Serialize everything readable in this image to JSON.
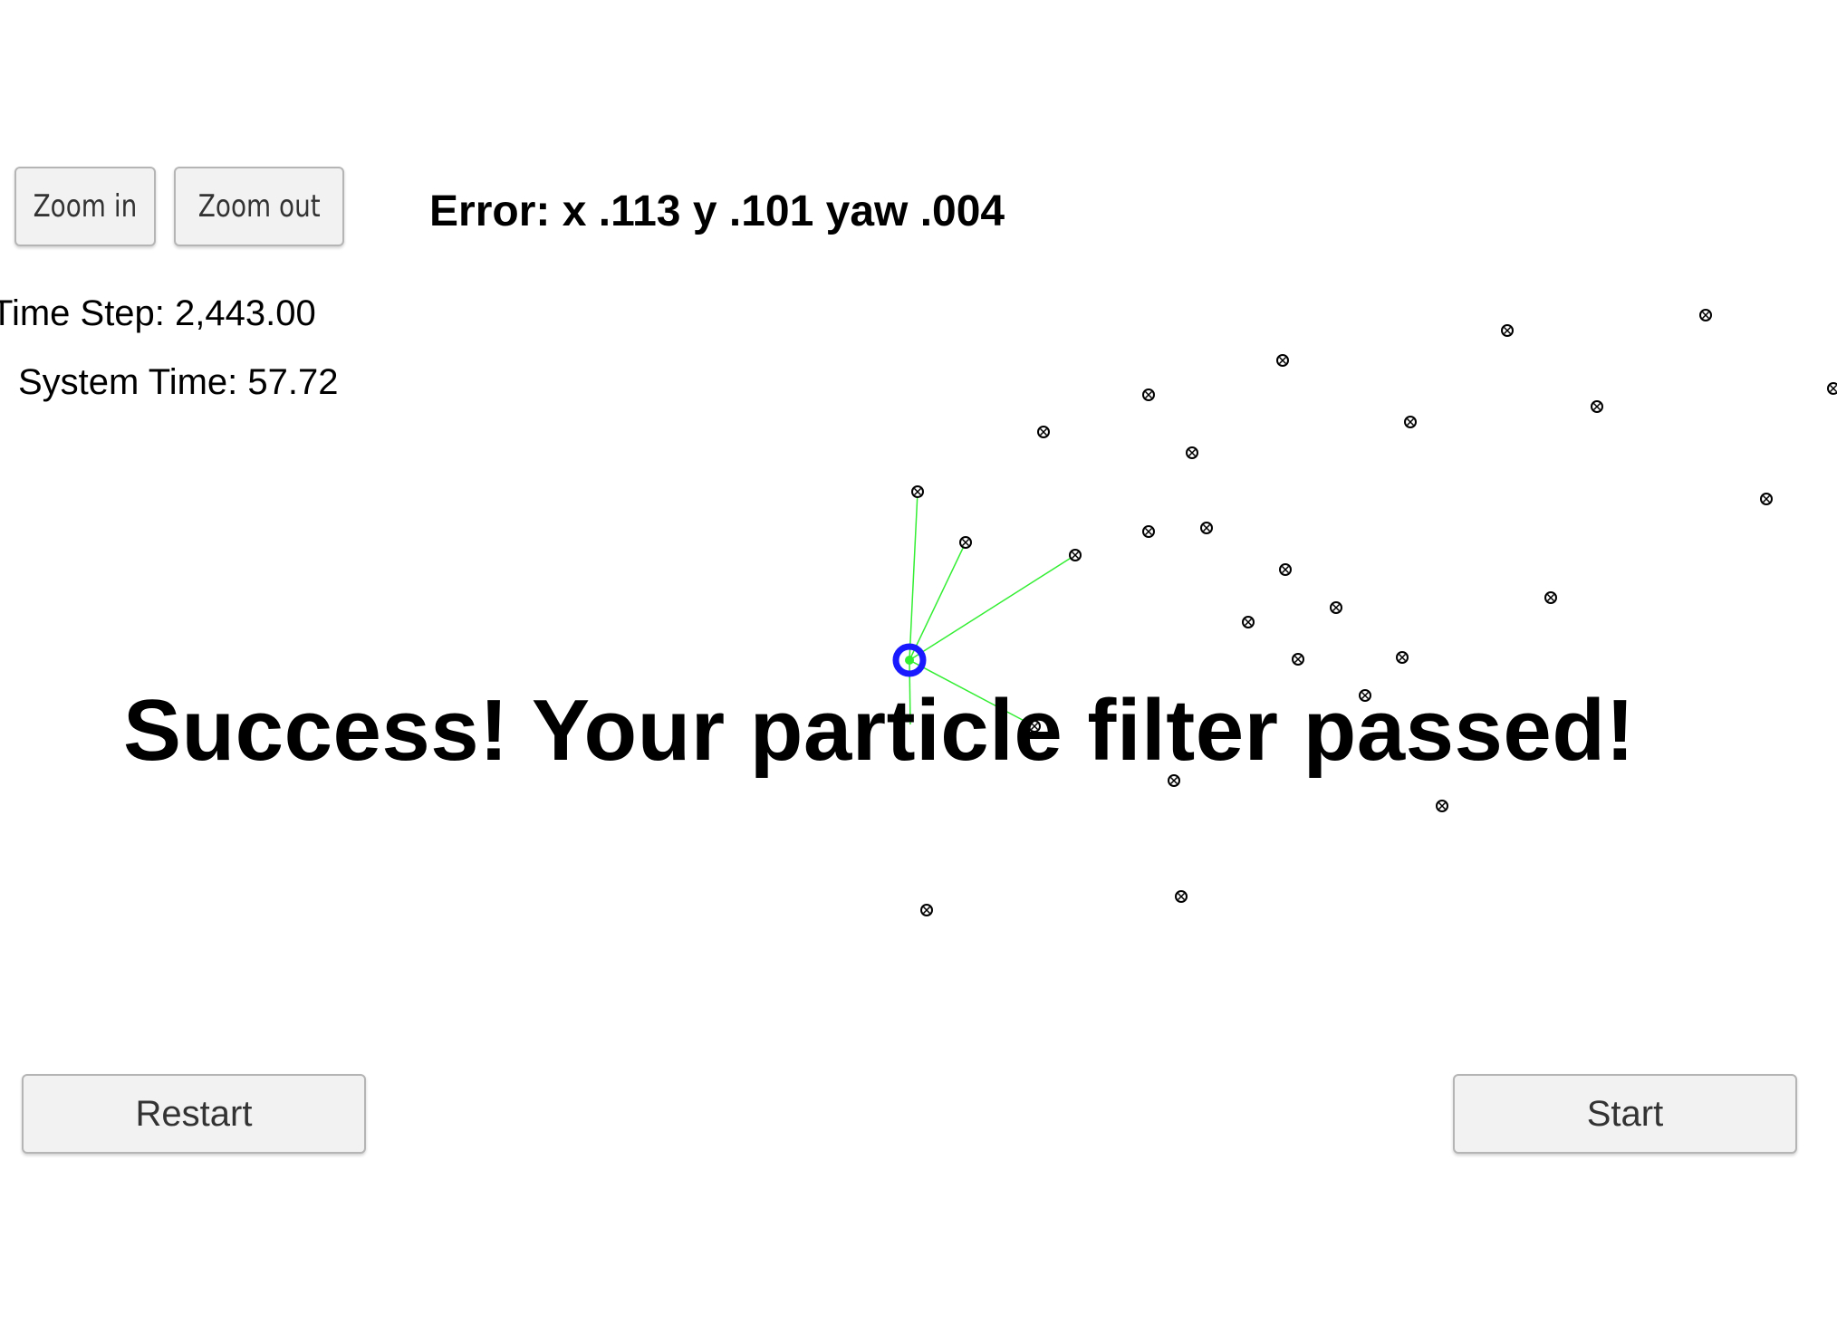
{
  "toolbar": {
    "zoom_in_label": "Zoom in",
    "zoom_out_label": "Zoom out"
  },
  "error": {
    "text": "Error: x .113 y .101 yaw .004"
  },
  "stats": {
    "time_step": "Time Step: 2,443.00",
    "system_time": "System Time: 57.72"
  },
  "message": {
    "success": "Success! Your particle filter passed!"
  },
  "controls": {
    "restart_label": "Restart",
    "start_label": "Start"
  },
  "colors": {
    "vehicle": "#1a1aff",
    "observation_lines": "#33ee33",
    "landmarks": "#000000"
  }
}
